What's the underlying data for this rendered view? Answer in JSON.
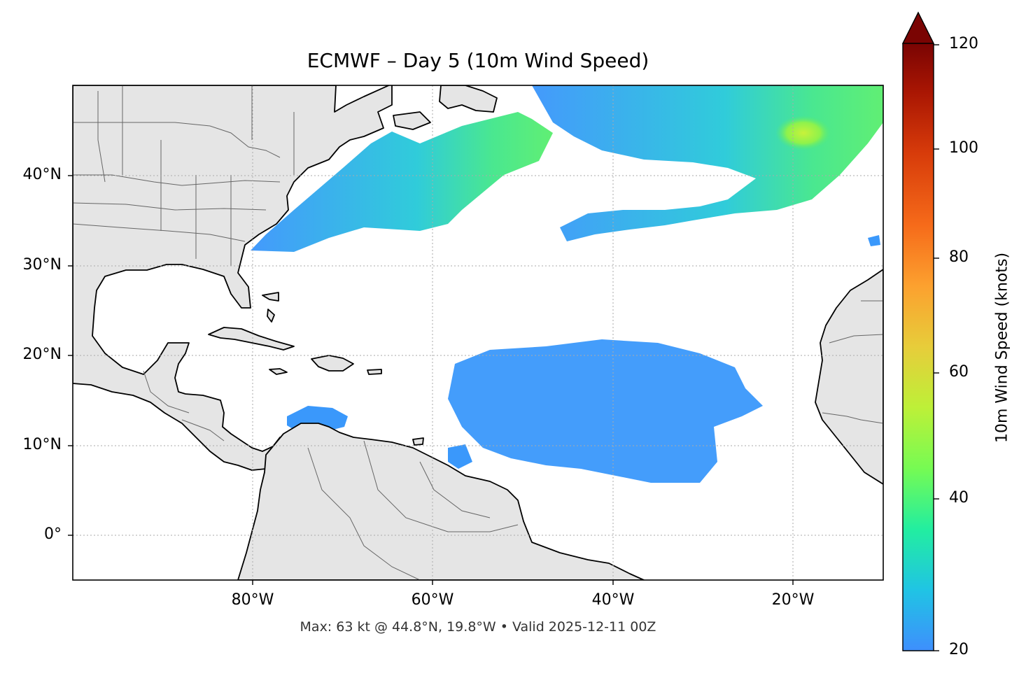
{
  "title": "ECMWF – Day 5 (10m Wind Speed)",
  "subtitle": "Max: 63 kt @ 44.8°N, 19.8°W • Valid 2025-12-11 00Z",
  "lat_ticks": [
    "40°N",
    "30°N",
    "20°N",
    "10°N",
    "0°"
  ],
  "lon_ticks": [
    "80°W",
    "60°W",
    "40°W",
    "20°W"
  ],
  "colorbar": {
    "label": "10m Wind Speed (knots)",
    "ticks": [
      "120",
      "100",
      "80",
      "60",
      "40",
      "20"
    ],
    "min": 20,
    "max": 120,
    "extend": "max",
    "colors": [
      "#3e8ffd",
      "#20c4e4",
      "#22eea0",
      "#76fb53",
      "#bdf038",
      "#e7cd3a",
      "#fca12f",
      "#f66b1a",
      "#d73b0a",
      "#a91603",
      "#7a0403"
    ]
  },
  "map": {
    "extent_lon": [
      -100,
      -10
    ],
    "extent_lat": [
      -5,
      50
    ],
    "land_color": "#e5e5e5",
    "ocean_color": "#ffffff"
  },
  "max_point": {
    "value": 63,
    "unit": "kt",
    "lat": 44.8,
    "lon": -19.8
  }
}
